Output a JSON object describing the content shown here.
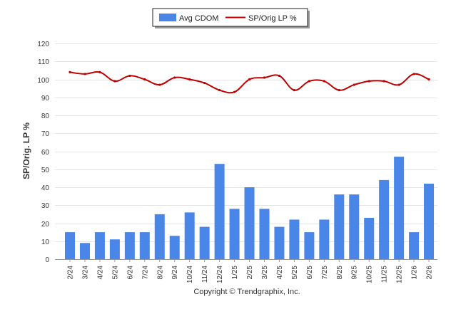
{
  "chart_data": {
    "type": "bar+line",
    "ylabel": "SP/Orig. LP %",
    "ylim": [
      0,
      120
    ],
    "yticks": [
      0,
      10,
      20,
      30,
      40,
      50,
      60,
      70,
      80,
      90,
      100,
      110,
      120
    ],
    "grid": true,
    "legend_position": "top-center",
    "categories": [
      "2/24",
      "3/24",
      "4/24",
      "5/24",
      "6/24",
      "7/24",
      "8/24",
      "9/24",
      "10/24",
      "11/24",
      "12/24",
      "1/25",
      "2/25",
      "3/25",
      "4/25",
      "5/25",
      "6/25",
      "7/25",
      "8/25",
      "9/25",
      "10/25",
      "11/25",
      "12/25",
      "1/26",
      "2/26"
    ],
    "series": [
      {
        "name": "Avg CDOM",
        "type": "bar",
        "color": "#4a86e8",
        "values": [
          15,
          9,
          15,
          11,
          15,
          15,
          25,
          13,
          26,
          18,
          53,
          28,
          40,
          28,
          18,
          22,
          15,
          22,
          36,
          36,
          23,
          44,
          57,
          15,
          42
        ]
      },
      {
        "name": "SP/Orig LP %",
        "type": "line",
        "color": "#c00000",
        "values": [
          104,
          103,
          104,
          99,
          102,
          100,
          97,
          101,
          100,
          98,
          94,
          93,
          100,
          101,
          102,
          94,
          99,
          99,
          94,
          97,
          99,
          99,
          97,
          103,
          100
        ]
      }
    ],
    "footer": "Copyright © Trendgraphix, Inc."
  }
}
